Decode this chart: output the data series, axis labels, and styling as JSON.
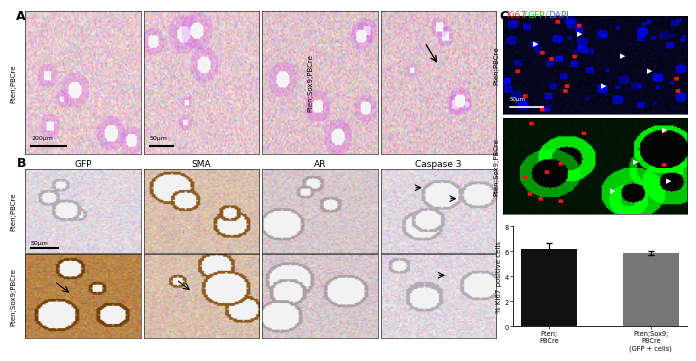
{
  "bar_categories": [
    "Pten;\nPBCre",
    "Pten;Sox9;\nPBCre\n(GFP + cells)"
  ],
  "bar_values": [
    6.2,
    5.85
  ],
  "bar_errors": [
    0.45,
    0.15
  ],
  "bar_colors": [
    "#111111",
    "#777777"
  ],
  "ylabel": "% Ki67 positive cells",
  "ylim": [
    0,
    8
  ],
  "yticks": [
    0,
    2,
    4,
    6,
    8
  ],
  "panel_A_label": "A",
  "panel_B_label": "B",
  "panel_C_label": "C",
  "label_A_left": "Pten;PBCre",
  "label_A_right": "Pten;Sox9;PBCre",
  "scalebar_A1": "200μm",
  "scalebar_A2": "50μm",
  "col_labels_B": [
    "GFP",
    "SMA",
    "AR",
    "Caspase 3"
  ],
  "row_label_B1": "Pten;PBCre",
  "row_label_B2": "Pten;Sox9;PBCre",
  "scalebar_B": "50μm",
  "title_color_ki67": "#ff2222",
  "title_color_gfp": "#22cc22",
  "title_color_dapi": "#4466ff",
  "row_label_C1": "Pten;PBCre",
  "row_label_C2": "Pten;Sox9;PBCre",
  "scalebar_C": "50μm",
  "figure_background": "#ffffff",
  "he_base_color1": [
    0.9,
    0.78,
    0.82
  ],
  "he_base_color2": [
    0.88,
    0.76,
    0.8
  ],
  "ihc_lavender": [
    0.88,
    0.84,
    0.88
  ],
  "ihc_brown_light": [
    0.85,
    0.75,
    0.68
  ],
  "ihc_brown_dark": [
    0.72,
    0.52,
    0.28
  ],
  "fluor_c1_bg": [
    0.02,
    0.02,
    0.12
  ],
  "fluor_c2_bg": [
    0.0,
    0.08,
    0.02
  ]
}
